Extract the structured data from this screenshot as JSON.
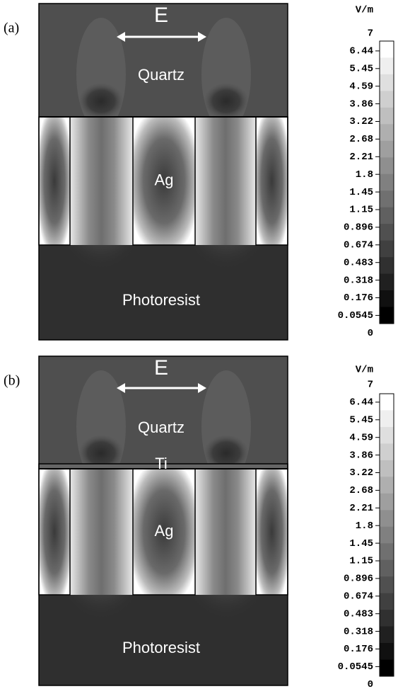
{
  "panels": [
    {
      "label": "(a)",
      "field_label": "E",
      "regions": {
        "top": "Quartz",
        "metal": "Ag",
        "bottom": "Photoresist"
      },
      "colorbar": {
        "unit": "V/m",
        "ticks": [
          "7",
          "6.44",
          "5.45",
          "4.59",
          "3.86",
          "3.22",
          "2.68",
          "2.21",
          "1.8",
          "1.45",
          "1.15",
          "0.896",
          "0.674",
          "0.483",
          "0.318",
          "0.176",
          "0.0545",
          "0"
        ]
      }
    },
    {
      "label": "(b)",
      "field_label": "E",
      "regions": {
        "top": "Quartz",
        "interlayer": "Ti",
        "metal": "Ag",
        "bottom": "Photoresist"
      },
      "colorbar": {
        "unit": "V/m",
        "ticks": [
          "7",
          "6.44",
          "5.45",
          "4.59",
          "3.86",
          "3.22",
          "2.68",
          "2.21",
          "1.8",
          "1.45",
          "1.15",
          "0.896",
          "0.674",
          "0.483",
          "0.318",
          "0.176",
          "0.0545",
          "0"
        ]
      }
    }
  ]
}
